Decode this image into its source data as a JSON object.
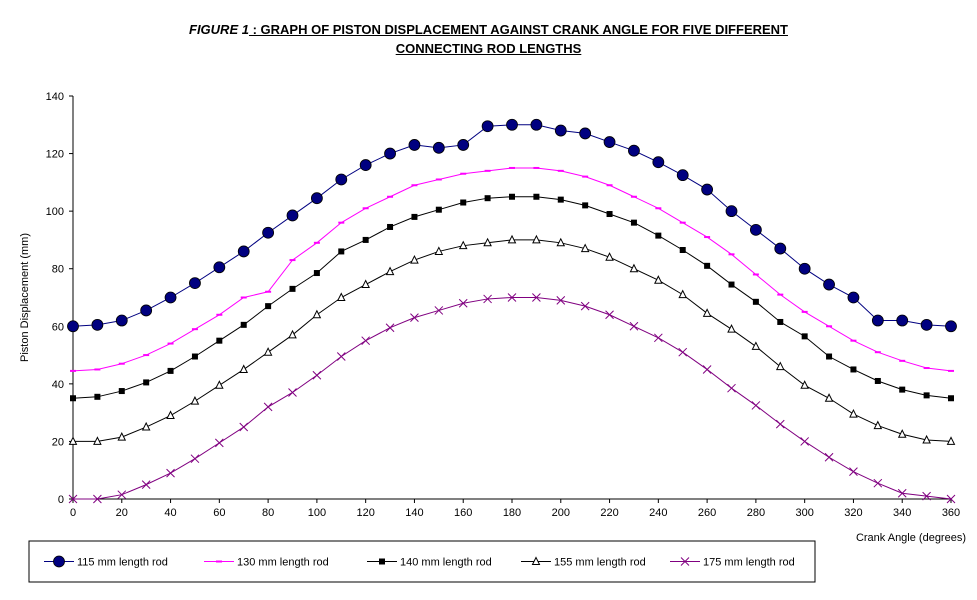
{
  "title": {
    "figure_label": "FIGURE 1",
    "line1": " : GRAPH OF PISTON DISPLACEMENT AGAINST CRANK ANGLE FOR  FIVE DIFFERENT",
    "line2": "CONNECTING ROD LENGTHS"
  },
  "chart_data": {
    "type": "line",
    "xlabel": "Crank Angle (degrees)",
    "ylabel": "Piston Displacement (mm)",
    "xlim": [
      0,
      360
    ],
    "ylim": [
      0,
      140
    ],
    "xticks": [
      0,
      20,
      40,
      60,
      80,
      100,
      120,
      140,
      160,
      180,
      200,
      220,
      240,
      260,
      280,
      300,
      320,
      340,
      360
    ],
    "yticks": [
      0,
      20,
      40,
      60,
      80,
      100,
      120,
      140
    ],
    "grid": false,
    "legend_position": "bottom",
    "x": [
      0,
      10,
      20,
      30,
      40,
      50,
      60,
      70,
      80,
      90,
      100,
      110,
      120,
      130,
      140,
      150,
      160,
      170,
      180,
      190,
      200,
      210,
      220,
      230,
      240,
      250,
      260,
      270,
      280,
      290,
      300,
      310,
      320,
      330,
      340,
      350,
      360
    ],
    "series": [
      {
        "name": "115 mm length rod",
        "color": "#000080",
        "marker": "circle",
        "values": [
          60,
          60.5,
          62,
          65.5,
          70,
          75,
          80.5,
          86,
          92.5,
          98.5,
          104.5,
          111,
          116,
          120,
          123,
          122,
          123,
          129.5,
          130,
          130,
          128,
          127,
          124,
          121,
          117,
          112.5,
          107.5,
          100,
          93.5,
          87,
          80,
          74.5,
          70,
          62,
          62,
          60.5,
          60
        ]
      },
      {
        "name": "130 mm length rod",
        "color": "#ff00ff",
        "marker": "dash",
        "values": [
          44.5,
          45,
          47,
          50,
          54,
          59,
          64,
          70,
          72,
          83,
          89,
          96,
          101,
          105,
          109,
          111,
          113,
          114,
          115,
          115,
          114,
          112,
          109,
          105,
          101,
          96,
          91,
          85,
          78,
          71,
          65,
          60,
          55,
          51,
          48,
          45.5,
          44.5
        ]
      },
      {
        "name": "140 mm length rod",
        "color": "#000000",
        "marker": "square",
        "values": [
          35,
          35.5,
          37.5,
          40.5,
          44.5,
          49.5,
          55,
          60.5,
          67,
          73,
          78.5,
          86,
          90,
          94.5,
          98,
          100.5,
          103,
          104.5,
          105,
          105,
          104,
          102,
          99,
          96,
          91.5,
          86.5,
          81,
          74.5,
          68.5,
          61.5,
          56.5,
          49.5,
          45,
          41,
          38,
          36,
          35
        ]
      },
      {
        "name": "155 mm length rod",
        "color": "#000000",
        "marker": "triangle",
        "values": [
          20,
          20,
          21.5,
          25,
          29,
          34,
          39.5,
          45,
          51,
          57,
          64,
          70,
          74.5,
          79,
          83,
          86,
          88,
          89,
          90,
          90,
          89,
          87,
          84,
          80,
          76,
          71,
          64.5,
          59,
          53,
          46,
          39.5,
          35,
          29.5,
          25.5,
          22.5,
          20.5,
          20
        ]
      },
      {
        "name": "175 mm length rod",
        "color": "#800080",
        "marker": "x",
        "values": [
          0,
          0,
          1.5,
          5,
          9,
          14,
          19.5,
          25,
          32,
          37,
          43,
          49.5,
          55,
          59.5,
          63,
          65.5,
          68,
          69.5,
          70,
          70,
          69,
          67,
          64,
          60,
          56,
          51,
          45,
          38.5,
          32.5,
          26,
          20,
          14.5,
          9.5,
          5.5,
          2,
          1,
          0
        ]
      }
    ]
  }
}
